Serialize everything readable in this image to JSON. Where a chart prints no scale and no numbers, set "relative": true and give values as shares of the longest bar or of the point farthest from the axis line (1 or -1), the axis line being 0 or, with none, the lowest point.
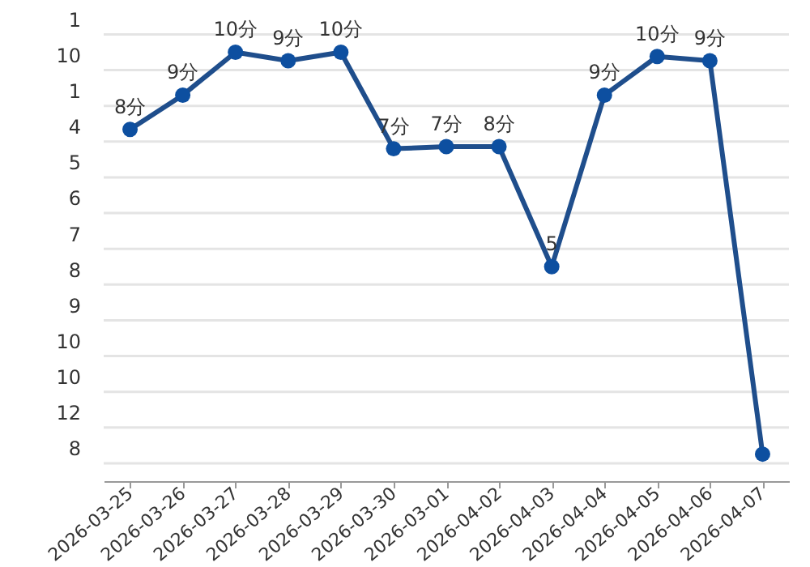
{
  "chart_data": {
    "type": "line",
    "relative": true,
    "categories": [
      "2026-03-25",
      "2026-03-26",
      "2026-03-27",
      "2026-03-28",
      "2026-03-29",
      "2026-03-30",
      "2026-03-01",
      "2026-04-02",
      "2026-04-03",
      "2026-04-04",
      "2026-04-05",
      "2026-04-06",
      "2026-04-07"
    ],
    "series": [
      {
        "color": "#1f4e8c",
        "values": [
          0.82,
          0.9,
          1,
          0.98,
          1,
          0.775,
          0.78,
          0.78,
          0.5,
          0.9,
          0.99,
          0.98,
          0.063
        ]
      }
    ],
    "annotations": [
      "1",
      "10",
      "1",
      "4",
      "5",
      "6",
      "7",
      "8",
      "9",
      "10",
      "10",
      "12",
      "8",
      {
        "text": "8分",
        "x": "2026-03-25",
        "y": 0.82
      },
      {
        "text": "9分",
        "x": "2026-03-26",
        "y": 0.9
      },
      {
        "text": "10分",
        "x": "2026-03-27",
        "y": 1
      },
      {
        "text": "9分",
        "x": "2026-03-28",
        "y": 0.98
      },
      {
        "text": "10分",
        "x": "2026-03-29",
        "y": 1
      },
      {
        "text": "7分",
        "x": "2026-03-30",
        "y": 0.775
      },
      {
        "text": "7分",
        "x": "2026-03-01",
        "y": 0.78
      },
      {
        "text": "8分",
        "x": "2026-04-02",
        "y": 0.78
      },
      {
        "text": "5",
        "x": "2026-04-03",
        "y": 0.5
      },
      {
        "text": "9分",
        "x": "2026-04-04",
        "y": 0.9
      },
      {
        "text": "10分",
        "x": "2026-04-05",
        "y": 0.99
      },
      {
        "text": "9分",
        "x": "2026-04-06",
        "y": 0.98
      }
    ],
    "grid": "y",
    "marker": "circle",
    "line_style": "solid"
  }
}
